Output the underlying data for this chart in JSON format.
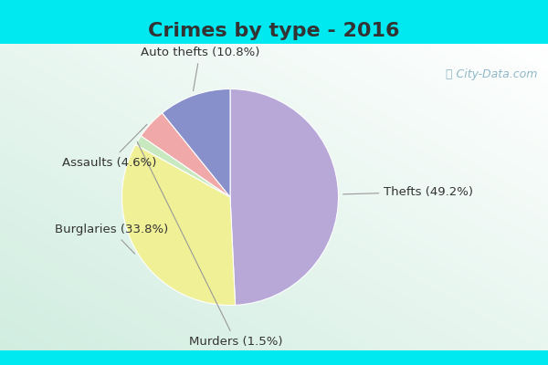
{
  "title": "Crimes by type - 2016",
  "labels": [
    "Thefts",
    "Burglaries",
    "Murders",
    "Assaults",
    "Auto thefts"
  ],
  "values": [
    49.2,
    33.8,
    1.5,
    4.6,
    10.8
  ],
  "colors": [
    "#b8a8d8",
    "#f0f096",
    "#c8e8c0",
    "#f0a8a8",
    "#8890cc"
  ],
  "label_texts": [
    "Thefts (49.2%)",
    "Burglaries (33.8%)",
    "Murders (1.5%)",
    "Assaults (4.6%)",
    "Auto thefts (10.8%)"
  ],
  "bg_cyan": "#00e8f0",
  "bg_body_top": "#d8f0e0",
  "bg_body_bottom": "#e8f8f0",
  "title_fontsize": 16,
  "label_fontsize": 9.5,
  "startangle": 90,
  "title_color": "#333333",
  "label_color": "#333333",
  "watermark_color": "#90b8c8"
}
